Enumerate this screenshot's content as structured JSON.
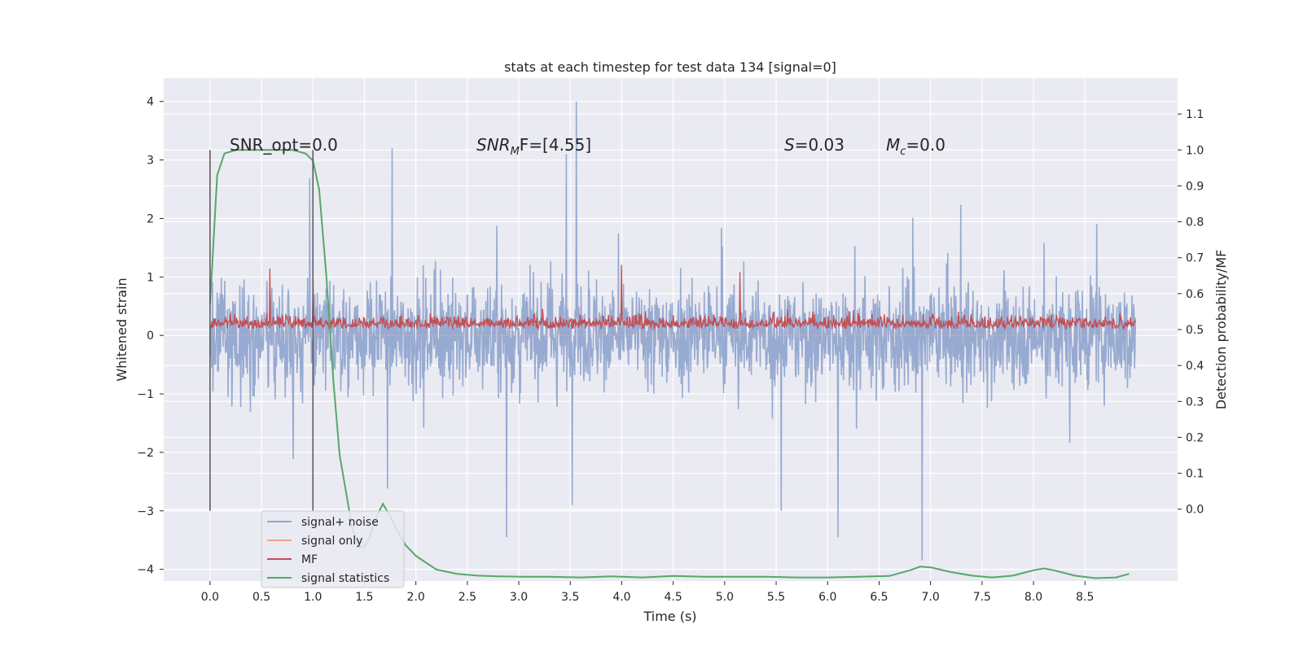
{
  "chart_data": {
    "type": "line",
    "title": "stats at each timestep for test data 134 [signal=0]",
    "xlabel": "Time (s)",
    "ylabel": "Whitened strain",
    "y2label": "Detection probability/MF",
    "xlim": [
      -0.45,
      9.4
    ],
    "ylim": [
      -4.2,
      4.4
    ],
    "y2lim": [
      -0.2,
      1.2
    ],
    "x_ticks": [
      "0.0",
      "0.5",
      "1.0",
      "1.5",
      "2.0",
      "2.5",
      "3.0",
      "3.5",
      "4.0",
      "4.5",
      "5.0",
      "5.5",
      "6.0",
      "6.5",
      "7.0",
      "7.5",
      "8.0",
      "8.5"
    ],
    "y_ticks": [
      "4",
      "3",
      "2",
      "1",
      "0",
      "−1",
      "−2",
      "−3",
      "−4"
    ],
    "y2_ticks": [
      "1.1",
      "1.0",
      "0.9",
      "0.8",
      "0.7",
      "0.6",
      "0.5",
      "0.4",
      "0.3",
      "0.2",
      "0.1",
      "0.0"
    ],
    "grid": true,
    "legend_position": "lower-left",
    "annotations": {
      "snr_opt": "SNR_opt=0.0",
      "snr_mf_main": "SNR",
      "snr_mf_sub": "M",
      "snr_mf_tail": "F=[4.55]",
      "s_label": "S",
      "s_value": "=0.03",
      "mc_label": "M",
      "mc_sub": "c",
      "mc_value": "=0.0"
    },
    "vertical_lines_x": [
      0.0,
      1.0
    ],
    "series": [
      {
        "name": "signal+ noise",
        "color": "#92a6cf",
        "axis": "left",
        "x_range": [
          0.0,
          8.99
        ],
        "amplitude_band": [
          -1.4,
          1.4
        ],
        "extremes": [
          [
            3.56,
            4.0
          ],
          [
            1.77,
            3.2
          ],
          [
            3.46,
            3.1
          ],
          [
            2.88,
            -3.45
          ],
          [
            6.1,
            -3.45
          ],
          [
            6.92,
            -3.85
          ],
          [
            5.55,
            -3.0
          ]
        ]
      },
      {
        "name": "signal only",
        "color": "#e8a88a",
        "axis": "left",
        "x": [
          0.0,
          8.99
        ],
        "y": [
          0.0,
          0.0
        ]
      },
      {
        "name": "MF",
        "color": "#c44e52",
        "axis": "right",
        "x_range": [
          0.0,
          8.99
        ],
        "baseline": 0.5,
        "amplitude_band": [
          0.5,
          0.6
        ],
        "extremes": [
          [
            0.58,
            0.67
          ],
          [
            4.0,
            0.68
          ],
          [
            5.15,
            0.66
          ],
          [
            1.0,
            0.64
          ]
        ]
      },
      {
        "name": "signal statistics",
        "color": "#55a868",
        "axis": "right",
        "x": [
          0.0,
          0.07,
          0.14,
          0.25,
          0.4,
          0.6,
          0.8,
          0.93,
          1.0,
          1.06,
          1.13,
          1.2,
          1.26,
          1.32,
          1.38,
          1.44,
          1.5,
          1.55,
          1.62,
          1.68,
          1.75,
          1.82,
          1.9,
          2.0,
          2.2,
          2.4,
          2.6,
          2.8,
          3.0,
          3.3,
          3.6,
          3.9,
          4.2,
          4.5,
          4.8,
          5.1,
          5.4,
          5.7,
          6.0,
          6.3,
          6.6,
          6.8,
          6.9,
          7.0,
          7.2,
          7.4,
          7.6,
          7.8,
          8.0,
          8.1,
          8.2,
          8.4,
          8.6,
          8.8,
          8.93
        ],
        "y": [
          0.57,
          0.93,
          0.99,
          1.0,
          1.0,
          1.0,
          1.0,
          0.99,
          0.97,
          0.89,
          0.65,
          0.35,
          0.15,
          0.05,
          -0.05,
          -0.105,
          -0.105,
          -0.08,
          -0.02,
          0.015,
          -0.02,
          -0.06,
          -0.1,
          -0.13,
          -0.168,
          -0.18,
          -0.185,
          -0.187,
          -0.188,
          -0.188,
          -0.19,
          -0.187,
          -0.19,
          -0.186,
          -0.188,
          -0.188,
          -0.188,
          -0.19,
          -0.19,
          -0.188,
          -0.186,
          -0.17,
          -0.16,
          -0.162,
          -0.175,
          -0.185,
          -0.19,
          -0.185,
          -0.17,
          -0.165,
          -0.17,
          -0.185,
          -0.192,
          -0.19,
          -0.18
        ]
      }
    ]
  }
}
